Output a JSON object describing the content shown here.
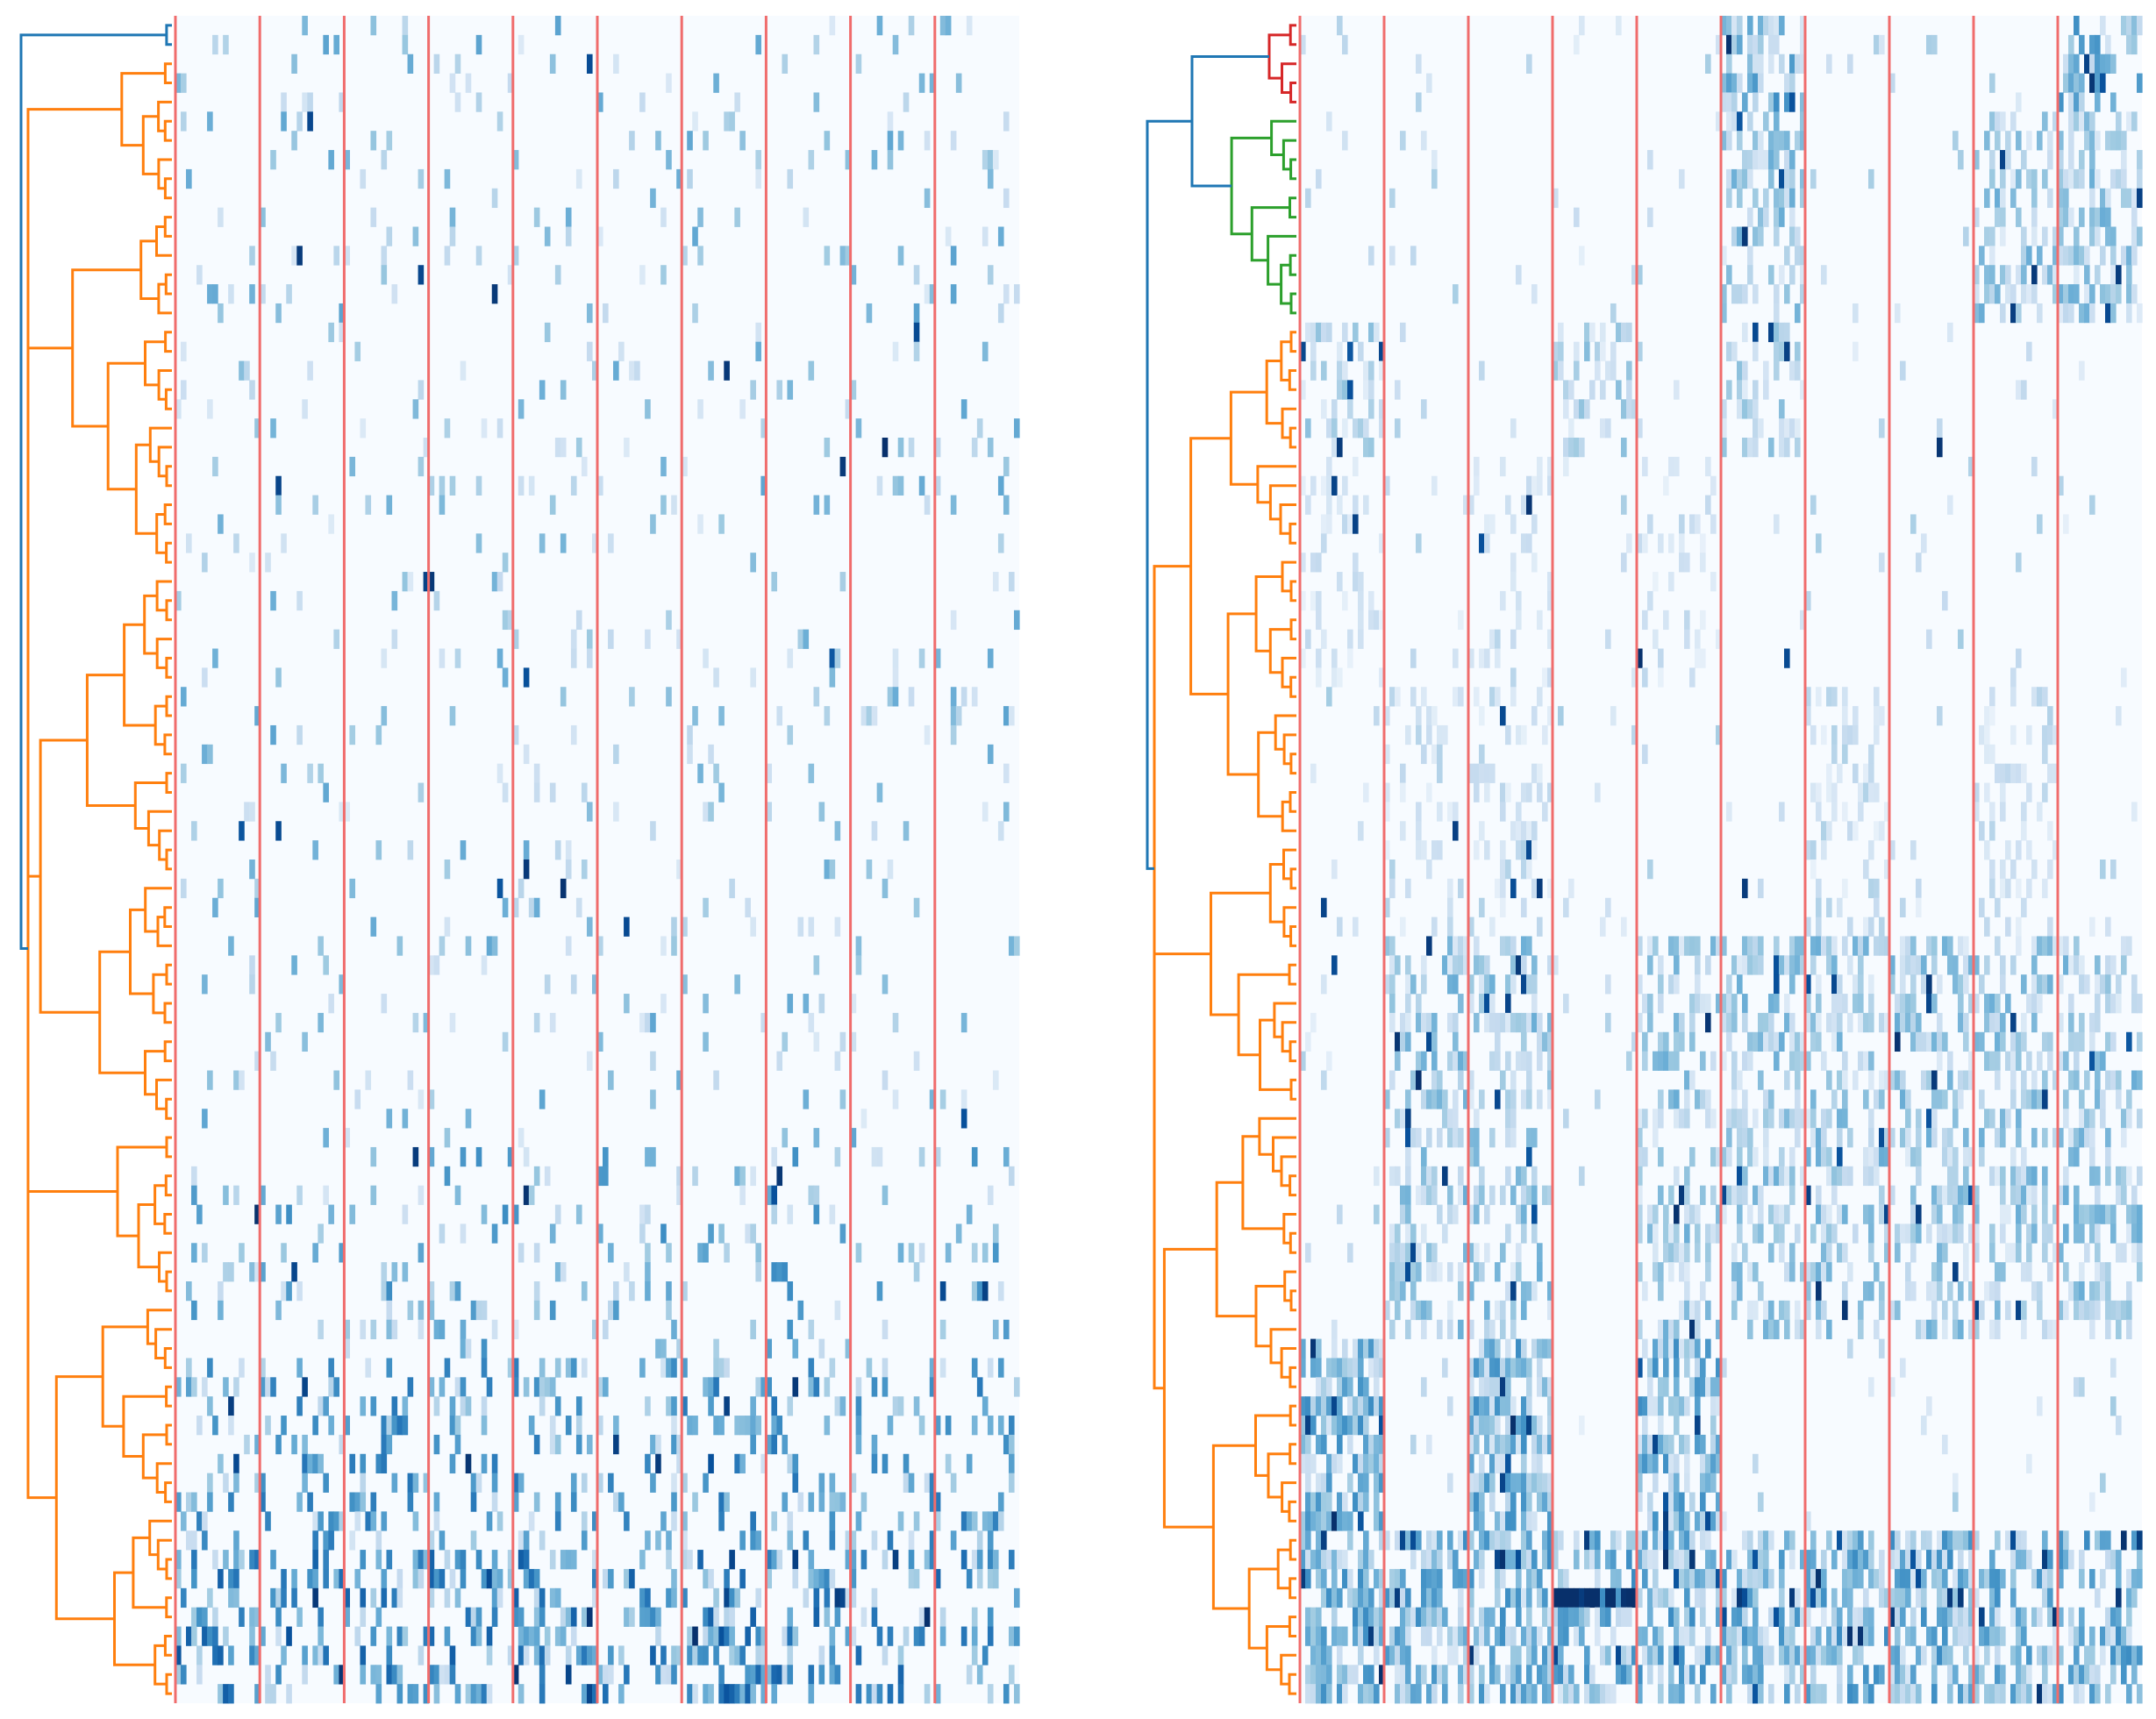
{
  "chart_data": [
    {
      "type": "heatmap",
      "panel": "left",
      "title": "",
      "xlabel": "",
      "ylabel": "",
      "n_rows": 88,
      "n_column_groups": 10,
      "columns_per_group": 16,
      "colormap": "Blues",
      "value_range": [
        0,
        1
      ],
      "grid": false,
      "has_dendrogram": true,
      "separator_color": "#f06c6c",
      "dendrogram_colors": [
        "#1f77b4",
        "#ff7f0e"
      ],
      "row_profile": {
        "block_rows": [
          [
            0,
            0.06,
            0.03
          ],
          [
            59,
            0.12,
            0.1
          ],
          [
            70,
            0.22,
            0.16
          ],
          [
            80,
            0.3,
            0.22
          ]
        ],
        "note_dense_group": 6
      }
    },
    {
      "type": "heatmap",
      "panel": "right",
      "title": "",
      "xlabel": "",
      "ylabel": "",
      "n_rows": 88,
      "n_column_groups": 10,
      "columns_per_group": 16,
      "colormap": "Blues",
      "value_range": [
        0,
        1
      ],
      "grid": false,
      "has_dendrogram": true,
      "separator_color": "#f06c6c",
      "dendrogram_colors": [
        "#1f77b4",
        "#d62728",
        "#2ca02c",
        "#ff7f0e"
      ],
      "row_blocks": [
        {
          "start": 0,
          "end": 4,
          "groups": [
            5,
            9
          ],
          "density": 0.55,
          "level": 0.45
        },
        {
          "start": 5,
          "end": 15,
          "groups": [
            5,
            8,
            9
          ],
          "density": 0.5,
          "level": 0.35
        },
        {
          "start": 16,
          "end": 22,
          "groups": [
            0,
            3,
            5
          ],
          "density": 0.4,
          "level": 0.3
        },
        {
          "start": 23,
          "end": 34,
          "groups": [
            0,
            2,
            4
          ],
          "density": 0.25,
          "level": 0.2
        },
        {
          "start": 35,
          "end": 47,
          "groups": [
            1,
            2,
            6,
            8
          ],
          "density": 0.3,
          "level": 0.22
        },
        {
          "start": 48,
          "end": 68,
          "groups": [
            1,
            2,
            4,
            5,
            6,
            7,
            8,
            9
          ],
          "density": 0.45,
          "level": 0.35
        },
        {
          "start": 69,
          "end": 78,
          "groups": [
            0,
            2,
            4
          ],
          "density": 0.7,
          "level": 0.45
        },
        {
          "start": 79,
          "end": 87,
          "groups": [
            0,
            1,
            2,
            3,
            4,
            5,
            6,
            7,
            8,
            9
          ],
          "density": 0.6,
          "level": 0.45
        }
      ]
    }
  ]
}
